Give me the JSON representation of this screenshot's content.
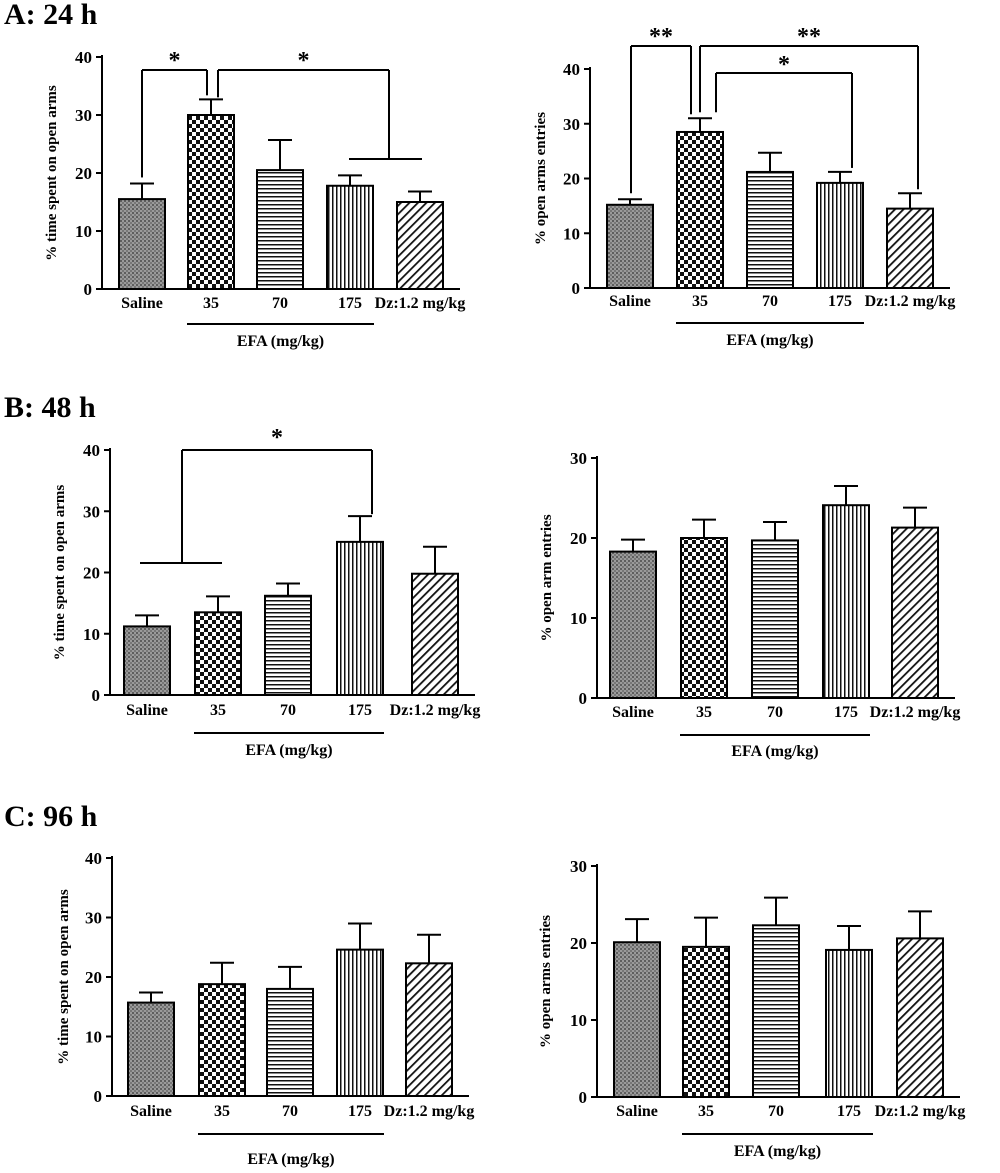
{
  "panels": [
    {
      "title": "A: 24 h"
    },
    {
      "title": "B: 48 h"
    },
    {
      "title": "C: 96 h"
    }
  ],
  "chart_data": [
    {
      "type": "bar",
      "panel": "A: 24 h",
      "categories": [
        "Saline",
        "35",
        "70",
        "175",
        "Dz:1.2 mg/kg"
      ],
      "values": [
        15.5,
        30,
        20.5,
        17.8,
        15
      ],
      "errors": [
        2.7,
        2.7,
        5.2,
        1.8,
        1.8
      ],
      "ylabel": "% time spent on  open arms",
      "group_label": "EFA (mg/kg)",
      "ylim": [
        0,
        40
      ],
      "yticks": [
        0,
        10,
        20,
        30,
        40
      ],
      "significance": [
        {
          "label": "*",
          "from": "Saline",
          "to": "35"
        },
        {
          "label": "*",
          "from": "35",
          "to": [
            "175",
            "Dz:1.2 mg/kg"
          ]
        }
      ]
    },
    {
      "type": "bar",
      "panel": "A: 24 h",
      "categories": [
        "Saline",
        "35",
        "70",
        "175",
        "Dz:1.2 mg/kg"
      ],
      "values": [
        15.2,
        28.5,
        21.2,
        19.2,
        14.5
      ],
      "errors": [
        1.0,
        2.5,
        3.5,
        2.0,
        2.8
      ],
      "ylabel": "% open arms entries",
      "group_label": "EFA (mg/kg)",
      "ylim": [
        0,
        40
      ],
      "yticks": [
        0,
        10,
        20,
        30,
        40
      ],
      "significance": [
        {
          "label": "**",
          "from": "Saline",
          "to": "35"
        },
        {
          "label": "*",
          "from": "35",
          "to": "175"
        },
        {
          "label": "**",
          "from": "35",
          "to": "Dz:1.2 mg/kg"
        }
      ]
    },
    {
      "type": "bar",
      "panel": "B: 48 h",
      "categories": [
        "Saline",
        "35",
        "70",
        "175",
        "Dz:1.2 mg/kg"
      ],
      "values": [
        11.2,
        13.5,
        16.2,
        25,
        19.8
      ],
      "errors": [
        1.8,
        2.6,
        2.0,
        4.2,
        4.4
      ],
      "ylabel": "%  time spent on open arms",
      "group_label": "EFA (mg/kg)",
      "ylim": [
        0,
        40
      ],
      "yticks": [
        0,
        10,
        20,
        30,
        40
      ],
      "significance": [
        {
          "label": "*",
          "from": [
            "Saline",
            "35"
          ],
          "to": "175"
        }
      ]
    },
    {
      "type": "bar",
      "panel": "B: 48 h",
      "categories": [
        "Saline",
        "35",
        "70",
        "175",
        "Dz:1.2 mg/kg"
      ],
      "values": [
        18.3,
        20,
        19.7,
        24.1,
        21.3
      ],
      "errors": [
        1.5,
        2.3,
        2.3,
        2.4,
        2.5
      ],
      "ylabel": "% open arm entries",
      "group_label": "EFA (mg/kg)",
      "ylim": [
        0,
        30
      ],
      "yticks": [
        0,
        10,
        20,
        30
      ],
      "significance": []
    },
    {
      "type": "bar",
      "panel": "C: 96 h",
      "categories": [
        "Saline",
        "35",
        "70",
        "175",
        "Dz:1.2 mg/kg"
      ],
      "values": [
        15.7,
        18.8,
        18,
        24.6,
        22.3
      ],
      "errors": [
        1.7,
        3.6,
        3.7,
        4.4,
        4.8
      ],
      "ylabel": "% time spent on open arms",
      "group_label": "EFA (mg/kg)",
      "ylim": [
        0,
        40
      ],
      "yticks": [
        0,
        10,
        20,
        30,
        40
      ],
      "significance": []
    },
    {
      "type": "bar",
      "panel": "C: 96 h",
      "categories": [
        "Saline",
        "35",
        "70",
        "175",
        "Dz:1.2 mg/kg"
      ],
      "values": [
        20.1,
        19.5,
        22.3,
        19.1,
        20.6
      ],
      "errors": [
        3.0,
        3.8,
        3.6,
        3.1,
        3.5
      ],
      "ylabel": "% open arms entries",
      "group_label": "EFA (mg/kg)",
      "ylim": [
        0,
        30
      ],
      "yticks": [
        0,
        10,
        20,
        30
      ],
      "significance": []
    }
  ]
}
